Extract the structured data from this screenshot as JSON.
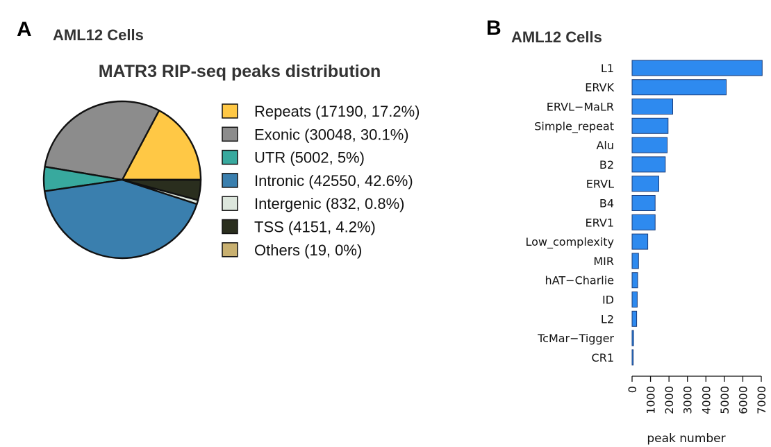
{
  "panel_a": {
    "letter": "A",
    "subtitle": "AML12 Cells",
    "chart_data": {
      "type": "pie",
      "title": "MATR3 RIP-seq peaks distribution",
      "slices": [
        {
          "legend": "Repeats (17190, 17.2%)",
          "value": 17190,
          "percent": 17.2,
          "color": "#FFC845"
        },
        {
          "legend": "Exonic (30048, 30.1%)",
          "value": 30048,
          "percent": 30.1,
          "color": "#8C8C8C"
        },
        {
          "legend": "UTR (5002, 5%)",
          "value": 5002,
          "percent": 5,
          "color": "#38A99E"
        },
        {
          "legend": "Intronic (42550, 42.6%)",
          "value": 42550,
          "percent": 42.6,
          "color": "#3A7FAE"
        },
        {
          "legend": "Intergenic (832, 0.8%)",
          "value": 832,
          "percent": 0.8,
          "color": "#DCE6DC"
        },
        {
          "legend": "TSS (4151, 4.2%)",
          "value": 4151,
          "percent": 4.2,
          "color": "#2A2E1E"
        },
        {
          "legend": "Others (19, 0%)",
          "value": 19,
          "percent": 0,
          "color": "#C8B070"
        }
      ],
      "legend_position": "right"
    }
  },
  "panel_b": {
    "letter": "B",
    "subtitle": "AML12 Cells",
    "chart_data": {
      "type": "bar",
      "orientation": "horizontal",
      "categories": [
        "L1",
        "ERVK",
        "ERVL−MaLR",
        "Simple_repeat",
        "Alu",
        "B2",
        "ERVL",
        "B4",
        "ERV1",
        "Low_complexity",
        "MIR",
        "hAT−Charlie",
        "ID",
        "L2",
        "TcMar−Tigger",
        "CR1"
      ],
      "values": [
        7050,
        5100,
        2200,
        1950,
        1900,
        1800,
        1450,
        1250,
        1250,
        850,
        350,
        300,
        280,
        250,
        80,
        60
      ],
      "xlabel": "peak number",
      "xlim": [
        0,
        7000
      ],
      "ticks": [
        "0",
        "1000",
        "2000",
        "3000",
        "4000",
        "5000",
        "6000",
        "7000"
      ],
      "bar_color": "#2E8AEF"
    }
  }
}
